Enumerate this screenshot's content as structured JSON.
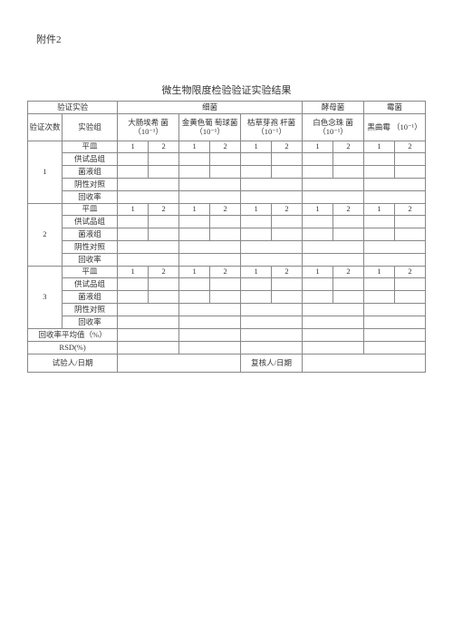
{
  "attachment": "附件2",
  "title": "微生物限度检验验证实验结果",
  "headers": {
    "verify_exp": "验证实验",
    "bacteria": "细菌",
    "yeast": "酵母菌",
    "mold": "霉菌",
    "verify_count": "验证次数",
    "exp_group": "实验组",
    "ecoli": "大肠埃希 菌（10⁻¹）",
    "staph": "金黄色葡 萄球菌 （10⁻¹）",
    "bacillus": "枯草芽孢 杆菌（10⁻¹）",
    "candida": "白色念珠 菌（10⁻¹）",
    "aspergillus": "黑曲霉 （10⁻¹）"
  },
  "row_labels": {
    "plate": "平皿",
    "sample_group": "供试品组",
    "liquid_group": "菌液组",
    "neg_control": "阴性对照",
    "recovery": "回收率"
  },
  "trials": [
    "1",
    "2",
    "3"
  ],
  "plate_nums": [
    "1",
    "2"
  ],
  "summary": {
    "recovery_avg": "回收率平均值（%）",
    "rsd": "RSD(%)"
  },
  "footer": {
    "tester": "试验人/日期",
    "reviewer": "复核人/日期"
  },
  "style": {
    "bg": "#ffffff",
    "border": "#888888",
    "text": "#333333",
    "title_fontsize": 11,
    "cell_fontsize": 8.5
  }
}
